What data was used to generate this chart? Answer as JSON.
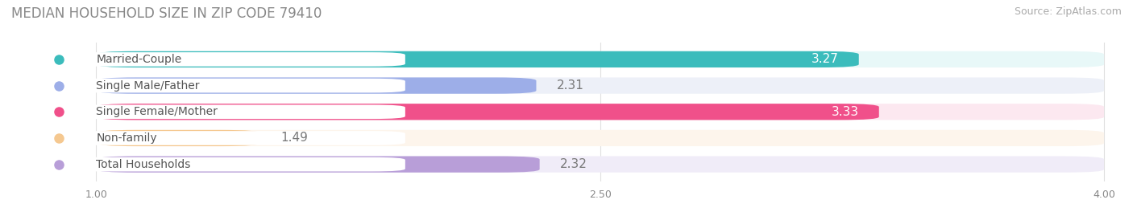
{
  "title": "MEDIAN HOUSEHOLD SIZE IN ZIP CODE 79410",
  "source": "Source: ZipAtlas.com",
  "categories": [
    "Married-Couple",
    "Single Male/Father",
    "Single Female/Mother",
    "Non-family",
    "Total Households"
  ],
  "values": [
    3.27,
    2.31,
    3.33,
    1.49,
    2.32
  ],
  "bar_colors": [
    "#3bbcbc",
    "#9daee8",
    "#f0508a",
    "#f5c890",
    "#b89ed8"
  ],
  "bar_bg_colors": [
    "#e8f8f8",
    "#edf0f8",
    "#fce8f0",
    "#fdf5ec",
    "#f0ecf8"
  ],
  "label_text_colors": [
    "#ffffff",
    "#6080c0",
    "#ffffff",
    "#c09050",
    "#8070b0"
  ],
  "xmin": 1.0,
  "xmax": 4.0,
  "xticks": [
    1.0,
    2.5,
    4.0
  ],
  "title_fontsize": 12,
  "source_fontsize": 9,
  "bar_label_fontsize": 11,
  "category_fontsize": 10,
  "background_color": "#ffffff",
  "grid_color": "#e0e0e0"
}
